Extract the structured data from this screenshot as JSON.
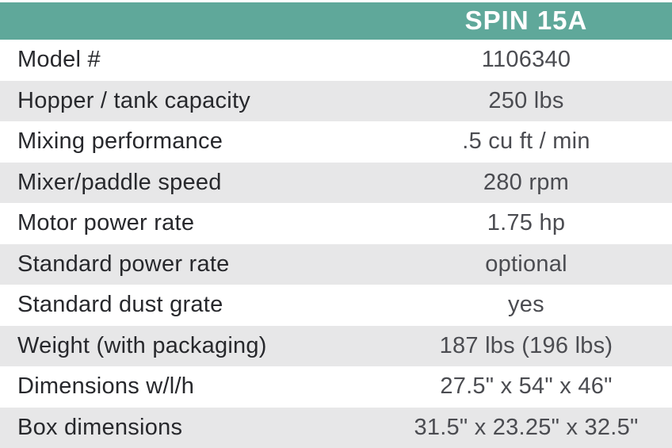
{
  "header": {
    "product_name": "SPIN 15A"
  },
  "rows": [
    {
      "label": "Model #",
      "value": "1106340"
    },
    {
      "label": "Hopper / tank capacity",
      "value": "250 lbs"
    },
    {
      "label": "Mixing performance",
      "value": ".5 cu ft / min"
    },
    {
      "label": "Mixer/paddle speed",
      "value": "280 rpm"
    },
    {
      "label": "Motor power rate",
      "value": "1.75 hp"
    },
    {
      "label": "Standard power rate",
      "value": "optional"
    },
    {
      "label": "Standard dust grate",
      "value": "yes"
    },
    {
      "label": "Weight (with packaging)",
      "value": "187 lbs (196 lbs)"
    },
    {
      "label": "Dimensions w/l/h",
      "value": "27.5\" x 54\" x 46\""
    },
    {
      "label": "Box dimensions",
      "value": "31.5\" x 23.25\" x 32.5\""
    }
  ],
  "colors": {
    "header_teal": "#5fa89a",
    "row_alt_gray": "#e7e7e8",
    "label_text": "#27282c",
    "value_text": "#4b4c51"
  }
}
